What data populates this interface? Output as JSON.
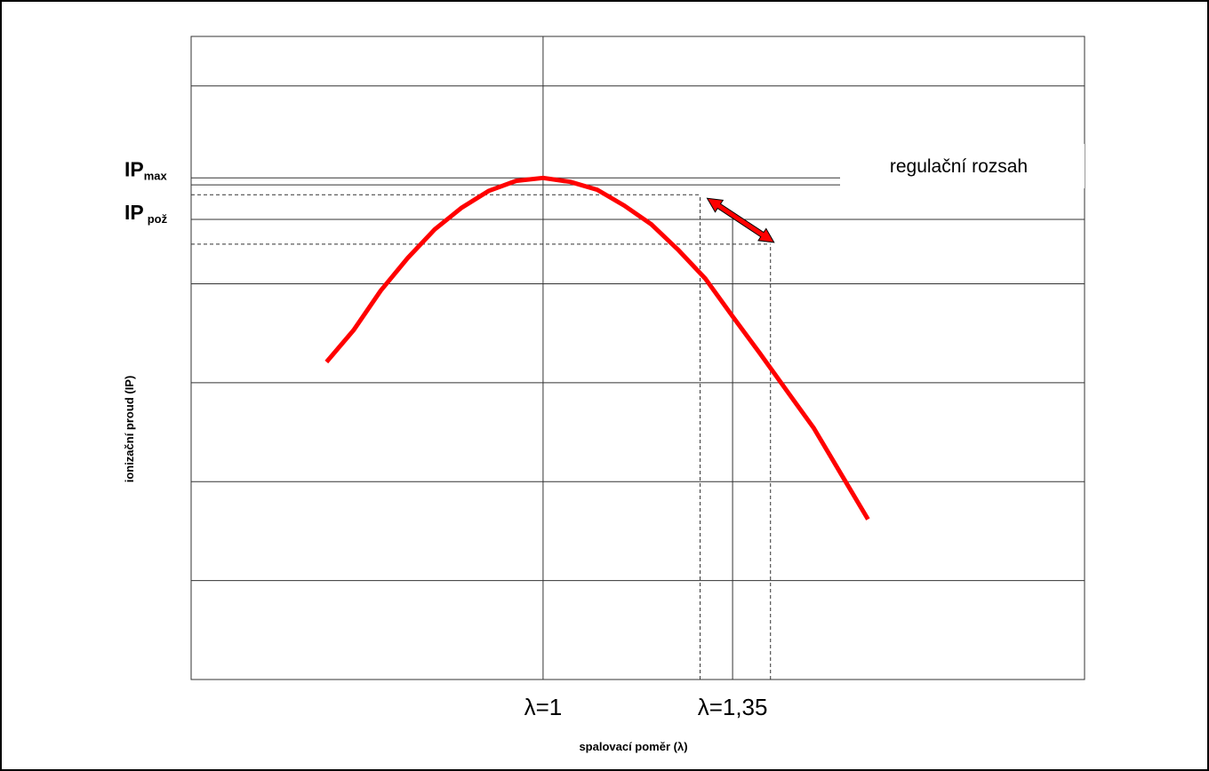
{
  "chart_data": {
    "type": "line",
    "title": "",
    "xlabel": "spalovací poměr (λ)",
    "ylabel": "ionizační proud (IP)",
    "grid": true,
    "legend": "none",
    "series": [
      {
        "name": "",
        "color": "#ff0000",
        "x": [
          0.6,
          0.65,
          0.7,
          0.75,
          0.8,
          0.85,
          0.9,
          0.95,
          1.0,
          1.05,
          1.1,
          1.15,
          1.2,
          1.25,
          1.3,
          1.35,
          1.4,
          1.45,
          1.5,
          1.55,
          1.6
        ],
        "y": [
          3.21,
          3.53,
          3.93,
          4.26,
          4.55,
          4.77,
          4.94,
          5.04,
          5.07,
          5.03,
          4.95,
          4.79,
          4.6,
          4.34,
          4.05,
          3.67,
          3.3,
          2.92,
          2.54,
          2.08,
          1.62
        ]
      }
    ],
    "x_ticks": [
      {
        "x": 1.0,
        "label": "λ=1"
      },
      {
        "x": 1.29,
        "label": ""
      },
      {
        "x": 1.35,
        "label": "λ=1,35"
      },
      {
        "x": 1.42,
        "label": ""
      }
    ],
    "y_ticks": [
      {
        "y": 5.07,
        "label": "IP",
        "sub": "max"
      },
      {
        "y": 4.65,
        "label": "IP",
        "sub": "pož"
      }
    ],
    "control_range": {
      "label": "regulační rozsah",
      "x_from": 1.29,
      "x_to": 1.42,
      "y_from": 4.9,
      "y_to": 4.4
    },
    "xlim": [
      0.35,
      2.0
    ],
    "ylim": [
      0,
      6.5
    ]
  }
}
